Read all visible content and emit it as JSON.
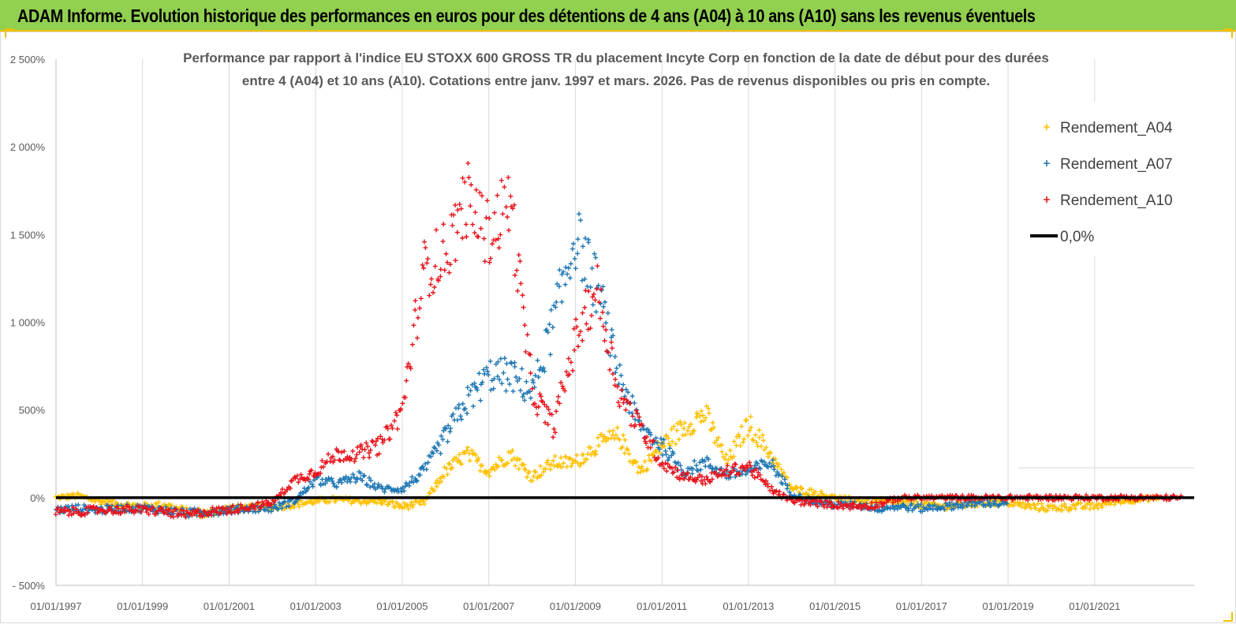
{
  "banner": {
    "title": "ADAM Informe. Evolution historique des performances en euros pour des détentions de 4 ans (A04) à 10 ans (A10) sans les revenus éventuels"
  },
  "colors": {
    "banner_bg": "#92d050",
    "A04": "#ffc000",
    "A07": "#1f77b4",
    "A10": "#e8141c",
    "zero_line": "#000000"
  },
  "chart_data": {
    "type": "scatter",
    "title_lines": [
      "Performance par rapport à l'indice EU STOXX 600 GROSS TR  du placement Incyte Corp en fonction de la date de début pour des durées",
      "entre 4 (A04) et 10 ans (A10). Cotations entre janv. 1997 et mars. 2026. Pas de revenus disponibles ou pris en compte."
    ],
    "xlabel": "",
    "ylabel": "",
    "x_range": [
      1997.0,
      2023.3
    ],
    "ylim": [
      -500,
      2500
    ],
    "y_ticks": [
      -500,
      0,
      500,
      1000,
      1500,
      2000,
      2500
    ],
    "y_tick_labels": [
      "- 500%",
      "0%",
      "500%",
      "1 000%",
      "1 500%",
      "2 000%",
      "2 500%"
    ],
    "x_ticks": [
      1997,
      1999,
      2001,
      2003,
      2005,
      2007,
      2009,
      2011,
      2013,
      2015,
      2017,
      2019,
      2021
    ],
    "x_tick_labels": [
      "01/01/1997",
      "01/01/1999",
      "01/01/2001",
      "01/01/2003",
      "01/01/2005",
      "01/01/2007",
      "01/01/2009",
      "01/01/2011",
      "01/01/2013",
      "01/01/2015",
      "01/01/2017",
      "01/01/2019",
      "01/01/2021"
    ],
    "grid": "vertical",
    "legend_position": "top-right",
    "series": [
      {
        "name": "Rendement_A04",
        "marker": "+",
        "x": [
          1997.0,
          1997.5,
          1998.0,
          1998.5,
          1999.0,
          1999.5,
          2000.0,
          2000.5,
          2001.0,
          2001.5,
          2002.0,
          2002.5,
          2003.0,
          2003.5,
          2004.0,
          2004.5,
          2005.0,
          2005.5,
          2006.0,
          2006.5,
          2007.0,
          2007.5,
          2008.0,
          2008.5,
          2009.0,
          2009.5,
          2010.0,
          2010.5,
          2011.0,
          2011.5,
          2012.0,
          2012.5,
          2013.0,
          2013.5,
          2014.0,
          2014.5,
          2015.0,
          2015.5,
          2016.0,
          2016.5,
          2017.0,
          2017.5,
          2018.0,
          2018.5,
          2019.0,
          2019.5,
          2020.0,
          2020.5,
          2021.0,
          2021.5,
          2022.0,
          2022.5
        ],
        "values": [
          0,
          10,
          -20,
          -40,
          -50,
          -40,
          -80,
          -90,
          -60,
          -60,
          -50,
          -40,
          -20,
          -10,
          -20,
          -20,
          -50,
          -30,
          150,
          250,
          150,
          250,
          120,
          200,
          200,
          300,
          350,
          150,
          300,
          400,
          480,
          200,
          420,
          250,
          50,
          30,
          0,
          -20,
          -20,
          -30,
          -40,
          -50,
          -40,
          -30,
          -30,
          -50,
          -60,
          -50,
          -50,
          -20,
          -10,
          0
        ]
      },
      {
        "name": "Rendement_A07",
        "marker": "+",
        "x": [
          1997.0,
          1997.5,
          1998.0,
          1998.5,
          1999.0,
          1999.5,
          2000.0,
          2000.5,
          2001.0,
          2001.5,
          2002.0,
          2002.5,
          2003.0,
          2003.5,
          2004.0,
          2004.5,
          2005.0,
          2005.5,
          2006.0,
          2006.5,
          2007.0,
          2007.5,
          2008.0,
          2008.5,
          2009.0,
          2009.5,
          2010.0,
          2010.5,
          2011.0,
          2011.5,
          2012.0,
          2012.5,
          2013.0,
          2013.5,
          2014.0,
          2014.5,
          2015.0,
          2015.5,
          2016.0,
          2016.5,
          2017.0,
          2017.5,
          2018.0,
          2018.5,
          2019.0
        ],
        "values": [
          -70,
          -60,
          -70,
          -60,
          -60,
          -70,
          -90,
          -80,
          -70,
          -60,
          -60,
          -20,
          100,
          80,
          120,
          50,
          50,
          150,
          350,
          550,
          700,
          700,
          600,
          1000,
          1500,
          1200,
          700,
          400,
          300,
          150,
          200,
          130,
          150,
          200,
          20,
          -20,
          -40,
          -40,
          -60,
          -50,
          -60,
          -50,
          -40,
          -30,
          -40
        ]
      },
      {
        "name": "Rendement_A10",
        "marker": "+",
        "x": [
          1997.0,
          1997.5,
          1998.0,
          1998.5,
          1999.0,
          1999.5,
          2000.0,
          2000.5,
          2001.0,
          2001.5,
          2002.0,
          2002.5,
          2003.0,
          2003.5,
          2004.0,
          2004.5,
          2005.0,
          2005.5,
          2006.0,
          2006.5,
          2007.0,
          2007.5,
          2008.0,
          2008.5,
          2009.0,
          2009.5,
          2010.0,
          2010.5,
          2011.0,
          2011.5,
          2012.0,
          2012.5,
          2013.0,
          2013.5,
          2014.0,
          2014.5,
          2015.0,
          2015.5,
          2016.0,
          2016.5,
          2017.0,
          2017.5,
          2018.0,
          2018.5,
          2019.0,
          2019.5,
          2020.0,
          2020.5,
          2021.0,
          2021.5,
          2022.0,
          2022.5,
          2023.0
        ],
        "values": [
          -80,
          -80,
          -70,
          -70,
          -70,
          -80,
          -100,
          -80,
          -70,
          -50,
          -30,
          100,
          150,
          250,
          250,
          300,
          500,
          1300,
          1400,
          1700,
          1500,
          1700,
          600,
          400,
          900,
          1200,
          600,
          400,
          200,
          120,
          100,
          150,
          180,
          50,
          -20,
          -30,
          -40,
          -50,
          -40,
          0,
          0,
          0,
          0,
          0,
          0,
          0,
          0,
          0,
          0,
          0,
          0,
          0,
          0
        ]
      },
      {
        "name": "0,0%",
        "type": "line",
        "x": [
          1997.0,
          2023.3
        ],
        "values": [
          0,
          0
        ]
      }
    ],
    "legend": [
      "Rendement_A04",
      "Rendement_A07",
      "Rendement_A10",
      "0,0%"
    ]
  }
}
